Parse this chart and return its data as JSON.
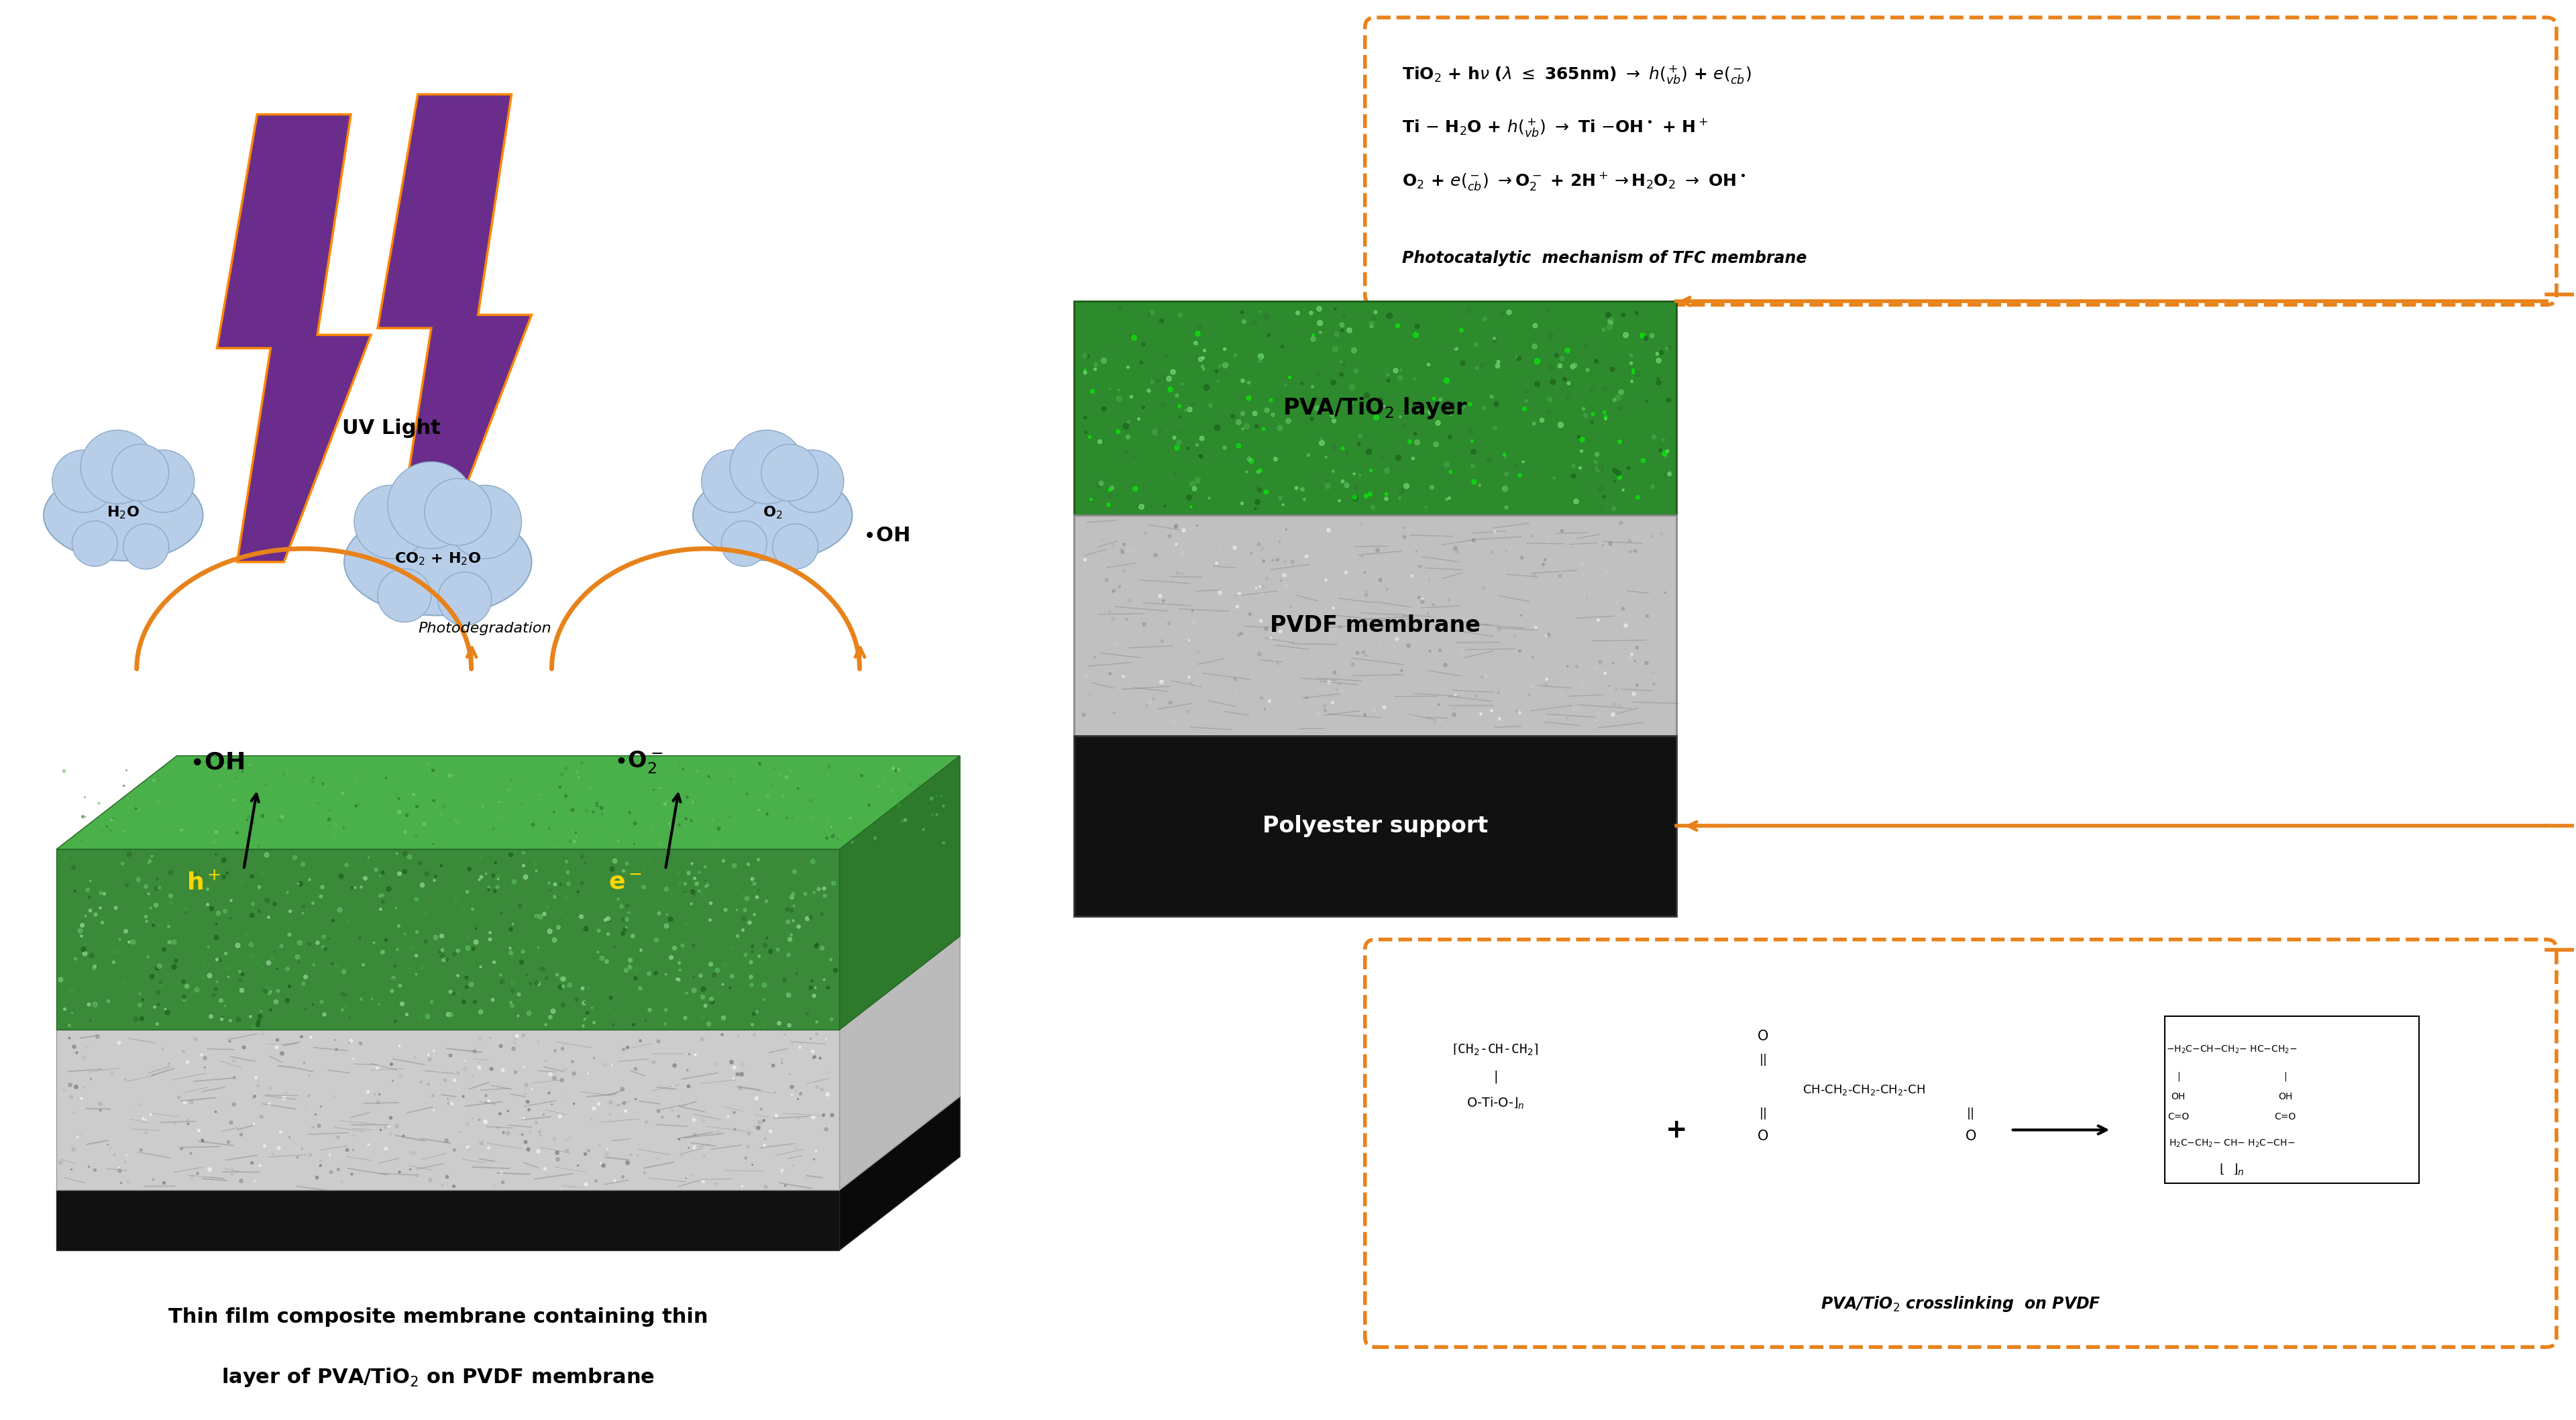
{
  "bg_color": "#ffffff",
  "orange_color": "#E8821A",
  "purple_color": "#6B2D8B",
  "figure_width": 38.41,
  "figure_height": 21.17,
  "photocatalytic_label": "Photocatalytic  mechanism of TFC membrane",
  "pva_tio2_label": "PVA/TiO$_2$ layer",
  "pvdf_label": "PVDF membrane",
  "polyester_label": "Polyester support",
  "crosslink_label": "PVA/TiO$_2$ crosslinking  on PVDF",
  "bottom_caption_line1": "Thin film composite membrane containing thin",
  "bottom_caption_line2": "layer of PVA/TiO$_2$ on PVDF membrane",
  "uv_label": "UV Light",
  "h2o_label": "H$_2$O",
  "co2_label": "CO$_2$ + H$_2$O",
  "o2_label": "O$_2$",
  "oh_right_label": "$\\bullet$OH",
  "oh_surface_label": "$\\bullet$OH",
  "o2rad_label": "$\\bullet$O$^-_2$",
  "hplus_label": "h$^+$",
  "eminus_label": "e$^-$",
  "photodeg_label": "Photodegradation",
  "eq1": "TiO$_2$ + h$\\nu$ ($\\lambda$ $\\leq$ 365nm) $\\rightarrow$ $h(_{vb}^+)$ + $e(_{cb}^-)$",
  "eq2": "Ti $-$ H$_2$O + $h(_{vb}^+)$ $\\rightarrow$ Ti $-$OH$^\\bullet$ + H$^+$",
  "eq3": "O$_2$ + $e(_{cb}^-)$ $\\rightarrow$O$^-_2$ + 2H$^+$$\\rightarrow$H$_2$O$_2$ $\\rightarrow$ OH$^\\bullet$"
}
